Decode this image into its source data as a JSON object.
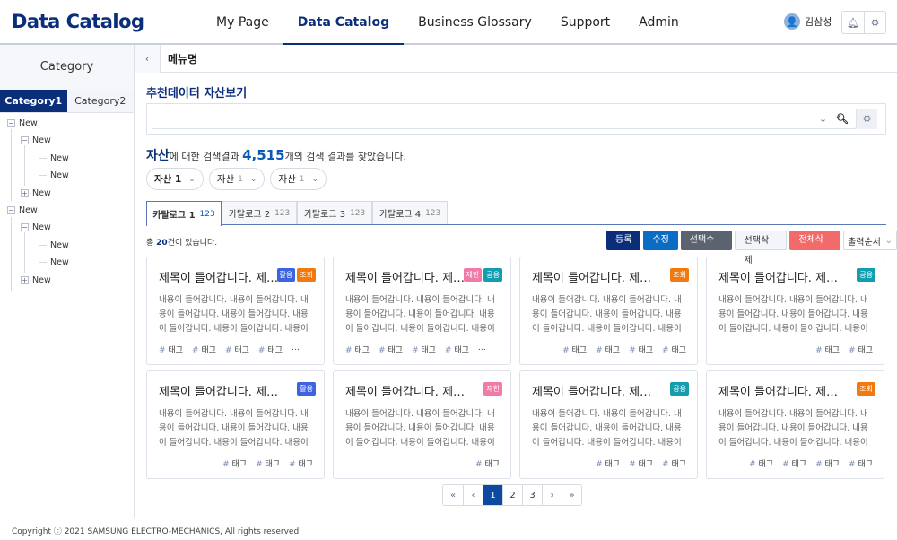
{
  "header": {
    "logo": "Data Catalog",
    "nav": [
      "My Page",
      "Data Catalog",
      "Business Glossary",
      "Support",
      "Admin"
    ],
    "active_nav": 1,
    "user": "김삼성"
  },
  "sidebar": {
    "title": "Category",
    "tabs": [
      "Category1",
      "Category2"
    ],
    "tree": [
      {
        "label": "New",
        "level": 0,
        "toggle": "-"
      },
      {
        "label": "New",
        "level": 1,
        "toggle": "-"
      },
      {
        "label": "New",
        "level": 2,
        "toggle": ""
      },
      {
        "label": "New",
        "level": 2,
        "toggle": ""
      },
      {
        "label": "New",
        "level": 1,
        "toggle": "+"
      },
      {
        "label": "New",
        "level": 0,
        "toggle": "-"
      },
      {
        "label": "New",
        "level": 1,
        "toggle": "-"
      },
      {
        "label": "New",
        "level": 2,
        "toggle": ""
      },
      {
        "label": "New",
        "level": 2,
        "toggle": ""
      },
      {
        "label": "New",
        "level": 1,
        "toggle": "+"
      }
    ]
  },
  "main": {
    "menu_title": "메뉴명",
    "section_title": "추천데이터 자산보기",
    "result": {
      "keyword": "자산",
      "mid": "에 대한 검색결과 ",
      "count": "4,515",
      "tail": "개의 검색 결과를 찾았습니다."
    },
    "chips": [
      {
        "label": "자산 1",
        "value": ""
      },
      {
        "label": "자산",
        "value": "1"
      },
      {
        "label": "자산",
        "value": "1"
      }
    ],
    "tabs": [
      {
        "label": "카탈로그 1",
        "count": "123"
      },
      {
        "label": "카탈로그 2",
        "count": "123"
      },
      {
        "label": "카탈로그 3",
        "count": "123"
      },
      {
        "label": "카탈로그 4",
        "count": "123"
      }
    ],
    "total": {
      "pre": "총 ",
      "num": "20",
      "post": "건이 있습니다."
    },
    "actions": [
      {
        "label": "등록",
        "color": "#0b2e7a"
      },
      {
        "label": "수정",
        "color": "#0a6cc2"
      },
      {
        "label": "선택수정",
        "color": "#5b6270"
      },
      {
        "label": "선택삭제",
        "color": "#f3f5fa"
      },
      {
        "label": "전체삭제",
        "color": "#f26a6a"
      }
    ],
    "sort_label": "출력순서",
    "badge_colors": {
      "활용": "#3d63e0",
      "조회": "#f07a10",
      "제한": "#f07aa8",
      "공용": "#139eb0"
    },
    "cards": [
      {
        "title": "제목이 들어갑니다. 제…",
        "badges": [
          "활용",
          "조회"
        ],
        "body": "내용이 들어갑니다. 내용이 들어갑니다. 내용이 들어갑니다. 내용이 들어갑니다. 내용이 들어갑니다. 내용이 들어갑니다. 내용이 들어…",
        "tags": [
          "태그",
          "태그",
          "태그",
          "태그"
        ],
        "more": "…"
      },
      {
        "title": "제목이 들어갑니다. 제…",
        "badges": [
          "제한",
          "공용"
        ],
        "body": "내용이 들어갑니다. 내용이 들어갑니다. 내용이 들어갑니다. 내용이 들어갑니다. 내용이 들어갑니다. 내용이 들어갑니다. 내용이 들어…",
        "tags": [
          "태그",
          "태그",
          "태그",
          "태그"
        ],
        "more": "…"
      },
      {
        "title": "제목이 들어갑니다. 제…",
        "badges": [
          "조회"
        ],
        "body": "내용이 들어갑니다. 내용이 들어갑니다. 내용이 들어갑니다. 내용이 들어갑니다. 내용이 들어갑니다. 내용이 들어갑니다. 내용이 들어…",
        "tags": [
          "태그",
          "태그",
          "태그",
          "태그"
        ],
        "more": ""
      },
      {
        "title": "제목이 들어갑니다. 제…",
        "badges": [
          "공용"
        ],
        "body": "내용이 들어갑니다. 내용이 들어갑니다. 내용이 들어갑니다. 내용이 들어갑니다. 내용이 들어갑니다. 내용이 들어갑니다. 내용이 들어…",
        "tags": [
          "태그",
          "태그"
        ],
        "more": ""
      },
      {
        "title": "제목이 들어갑니다. 제…",
        "badges": [
          "활용"
        ],
        "body": "내용이 들어갑니다. 내용이 들어갑니다. 내용이 들어갑니다. 내용이 들어갑니다. 내용이 들어갑니다. 내용이 들어갑니다. 내용이 들어…",
        "tags": [
          "태그",
          "태그",
          "태그"
        ],
        "more": ""
      },
      {
        "title": "제목이 들어갑니다. 제…",
        "badges": [
          "제한"
        ],
        "body": "내용이 들어갑니다. 내용이 들어갑니다. 내용이 들어갑니다. 내용이 들어갑니다. 내용이 들어갑니다. 내용이 들어갑니다. 내용이 들어…",
        "tags": [
          "태그"
        ],
        "more": ""
      },
      {
        "title": "제목이 들어갑니다. 제…",
        "badges": [
          "공용"
        ],
        "body": "내용이 들어갑니다. 내용이 들어갑니다. 내용이 들어갑니다. 내용이 들어갑니다. 내용이 들어갑니다. 내용이 들어갑니다. 내용이 들어…",
        "tags": [
          "태그",
          "태그",
          "태그"
        ],
        "more": ""
      },
      {
        "title": "제목이 들어갑니다. 제…",
        "badges": [
          "조회"
        ],
        "body": "내용이 들어갑니다. 내용이 들어갑니다. 내용이 들어갑니다. 내용이 들어갑니다. 내용이 들어갑니다. 내용이 들어갑니다. 내용이 들어…",
        "tags": [
          "태그",
          "태그",
          "태그",
          "태그"
        ],
        "more": ""
      }
    ],
    "pagination": {
      "first": "«",
      "prev": "‹",
      "pages": [
        "1",
        "2",
        "3"
      ],
      "current": "1",
      "next": "›",
      "last": "»"
    }
  },
  "footer": {
    "copyright": "Copyright ⓒ 2021 SAMSUNG ELECTRO-MECHANICS, All rights reserved."
  }
}
